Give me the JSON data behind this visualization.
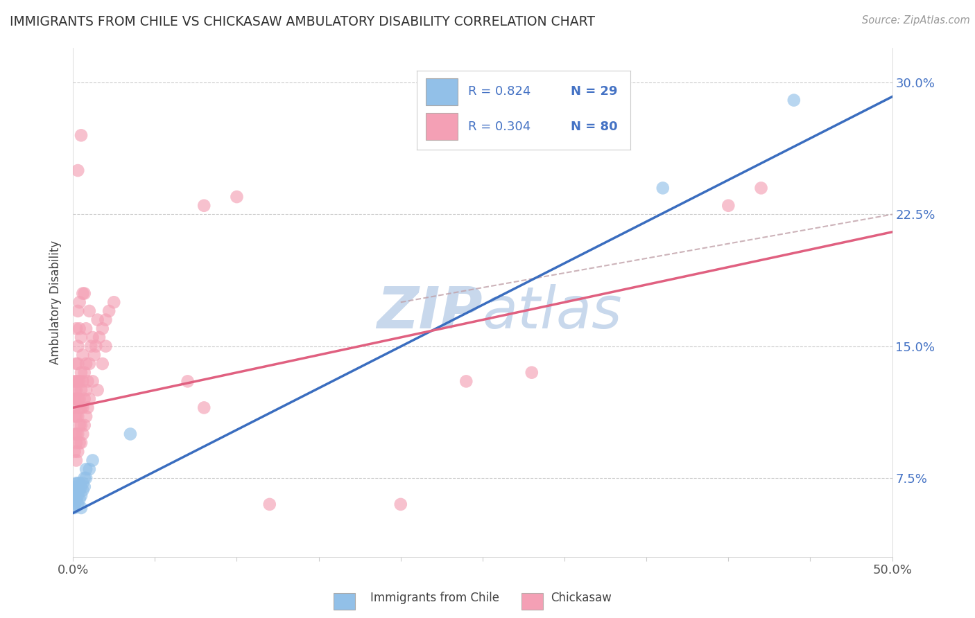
{
  "title": "IMMIGRANTS FROM CHILE VS CHICKASAW AMBULATORY DISABILITY CORRELATION CHART",
  "source_text": "Source: ZipAtlas.com",
  "ylabel": "Ambulatory Disability",
  "xlabel_blue": "Immigrants from Chile",
  "xlabel_pink": "Chickasaw",
  "xlim": [
    0.0,
    0.5
  ],
  "ylim": [
    0.03,
    0.32
  ],
  "yticks": [
    0.075,
    0.15,
    0.225,
    0.3
  ],
  "ytick_labels": [
    "7.5%",
    "15.0%",
    "22.5%",
    "30.0%"
  ],
  "xtick_positions": [
    0.0,
    0.05,
    0.1,
    0.15,
    0.2,
    0.25,
    0.3,
    0.35,
    0.4,
    0.45,
    0.5
  ],
  "legend_R_blue": "R = 0.824",
  "legend_N_blue": "N = 29",
  "legend_R_pink": "R = 0.304",
  "legend_N_pink": "N = 80",
  "blue_color": "#92C0E8",
  "pink_color": "#F4A0B5",
  "line_blue_color": "#3A6DBF",
  "line_pink_color": "#E06080",
  "dashed_line_color": "#C0A0A8",
  "legend_text_color": "#4472C4",
  "watermark_color": "#C8D8EC",
  "blue_scatter": [
    [
      0.001,
      0.058
    ],
    [
      0.001,
      0.06
    ],
    [
      0.001,
      0.062
    ],
    [
      0.001,
      0.065
    ],
    [
      0.002,
      0.063
    ],
    [
      0.002,
      0.068
    ],
    [
      0.002,
      0.07
    ],
    [
      0.002,
      0.072
    ],
    [
      0.003,
      0.06
    ],
    [
      0.003,
      0.065
    ],
    [
      0.003,
      0.068
    ],
    [
      0.003,
      0.072
    ],
    [
      0.004,
      0.063
    ],
    [
      0.004,
      0.068
    ],
    [
      0.004,
      0.072
    ],
    [
      0.005,
      0.058
    ],
    [
      0.005,
      0.065
    ],
    [
      0.005,
      0.07
    ],
    [
      0.006,
      0.068
    ],
    [
      0.006,
      0.072
    ],
    [
      0.007,
      0.07
    ],
    [
      0.007,
      0.075
    ],
    [
      0.008,
      0.075
    ],
    [
      0.008,
      0.08
    ],
    [
      0.01,
      0.08
    ],
    [
      0.012,
      0.085
    ],
    [
      0.035,
      0.1
    ],
    [
      0.36,
      0.24
    ],
    [
      0.44,
      0.29
    ]
  ],
  "pink_scatter": [
    [
      0.001,
      0.09
    ],
    [
      0.001,
      0.1
    ],
    [
      0.001,
      0.11
    ],
    [
      0.001,
      0.115
    ],
    [
      0.001,
      0.12
    ],
    [
      0.001,
      0.125
    ],
    [
      0.001,
      0.13
    ],
    [
      0.002,
      0.085
    ],
    [
      0.002,
      0.095
    ],
    [
      0.002,
      0.1
    ],
    [
      0.002,
      0.11
    ],
    [
      0.002,
      0.12
    ],
    [
      0.002,
      0.125
    ],
    [
      0.002,
      0.13
    ],
    [
      0.002,
      0.14
    ],
    [
      0.002,
      0.16
    ],
    [
      0.003,
      0.09
    ],
    [
      0.003,
      0.1
    ],
    [
      0.003,
      0.11
    ],
    [
      0.003,
      0.12
    ],
    [
      0.003,
      0.13
    ],
    [
      0.003,
      0.14
    ],
    [
      0.003,
      0.15
    ],
    [
      0.003,
      0.17
    ],
    [
      0.004,
      0.095
    ],
    [
      0.004,
      0.105
    ],
    [
      0.004,
      0.115
    ],
    [
      0.004,
      0.12
    ],
    [
      0.004,
      0.13
    ],
    [
      0.004,
      0.16
    ],
    [
      0.005,
      0.095
    ],
    [
      0.005,
      0.105
    ],
    [
      0.005,
      0.115
    ],
    [
      0.005,
      0.125
    ],
    [
      0.005,
      0.135
    ],
    [
      0.005,
      0.155
    ],
    [
      0.006,
      0.1
    ],
    [
      0.006,
      0.115
    ],
    [
      0.006,
      0.13
    ],
    [
      0.006,
      0.145
    ],
    [
      0.007,
      0.105
    ],
    [
      0.007,
      0.12
    ],
    [
      0.007,
      0.135
    ],
    [
      0.007,
      0.18
    ],
    [
      0.008,
      0.11
    ],
    [
      0.008,
      0.125
    ],
    [
      0.008,
      0.14
    ],
    [
      0.009,
      0.115
    ],
    [
      0.009,
      0.13
    ],
    [
      0.01,
      0.12
    ],
    [
      0.01,
      0.14
    ],
    [
      0.011,
      0.15
    ],
    [
      0.012,
      0.155
    ],
    [
      0.013,
      0.145
    ],
    [
      0.014,
      0.15
    ],
    [
      0.015,
      0.165
    ],
    [
      0.016,
      0.155
    ],
    [
      0.018,
      0.16
    ],
    [
      0.02,
      0.165
    ],
    [
      0.022,
      0.17
    ],
    [
      0.025,
      0.175
    ],
    [
      0.003,
      0.25
    ],
    [
      0.005,
      0.27
    ],
    [
      0.07,
      0.13
    ],
    [
      0.08,
      0.115
    ],
    [
      0.08,
      0.23
    ],
    [
      0.1,
      0.235
    ],
    [
      0.12,
      0.06
    ],
    [
      0.2,
      0.06
    ],
    [
      0.24,
      0.13
    ],
    [
      0.28,
      0.135
    ],
    [
      0.4,
      0.23
    ],
    [
      0.42,
      0.24
    ],
    [
      0.004,
      0.175
    ],
    [
      0.006,
      0.18
    ],
    [
      0.008,
      0.16
    ],
    [
      0.01,
      0.17
    ],
    [
      0.012,
      0.13
    ],
    [
      0.015,
      0.125
    ],
    [
      0.018,
      0.14
    ],
    [
      0.02,
      0.15
    ]
  ]
}
